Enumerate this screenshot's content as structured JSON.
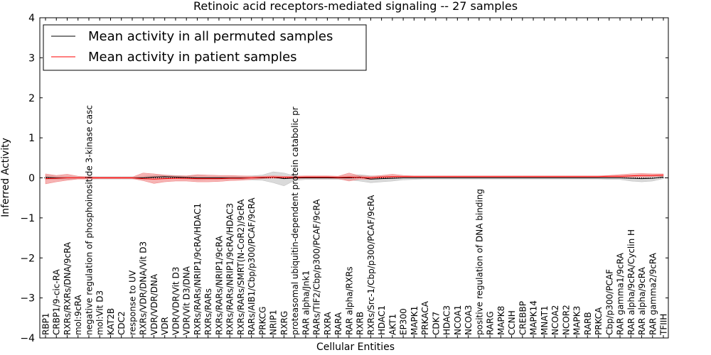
{
  "chart_data": {
    "type": "line",
    "title": "Retinoic acid receptors-mediated signaling -- 27 samples",
    "xlabel": "Cellular Entities",
    "ylabel": "Inferred Activity",
    "ylim": [
      -4,
      4
    ],
    "yticks": [
      "4",
      "3",
      "2",
      "1",
      "0",
      "−1",
      "−2",
      "−3",
      "−4"
    ],
    "legend_position": "upper-left",
    "categories": [
      "RBP1",
      "CRBP1/9-cic-RA",
      "RXRs/RXRs/DNA/9cRA",
      "mol:9cRA",
      "negative regulation of phosphoinositide 3-kinase casc",
      "mol:Vit D3",
      "KAT2B",
      "CDC2",
      "response to UV",
      "RXRs/VDR/DNA/Vit D3",
      "VDR/VDR/DNA",
      "VDR",
      "VDR/VDR/Vit D3",
      "VDR/Vit D3/DNA",
      "RXRs/RARs/NRIP1/9cRA/HDAC1",
      "RXRs/RARs",
      "RXRs/RARs/NRIP1/9cRA",
      "RXRs/RARs/NRIP1/9cRA/HDAC3",
      "RXRs/RARs/SMRT(N-CoR2)/9cRA",
      "RARs/AIB1/Cbp/p300/PCAF/9cRA",
      "PRKCG",
      "NRIP1",
      "RXRG",
      "proteasomal ubiquitin-dependent protein catabolic pr",
      "RAR alpha/Jnk1",
      "RARs/TIF2/Cbp/p300/PCAF/9cRA",
      "RXRA",
      "RARA",
      "RAR alpha/RXRs",
      "RXRB",
      "RXRs/Src-1/Cbp/p300/PCAF/9cRA",
      "HDAC1",
      "AKT1",
      "EP300",
      "MAPK1",
      "PRKACA",
      "CDK7",
      "HDAC3",
      "NCOA1",
      "NCOA3",
      "positive regulation of DNA binding",
      "RARG",
      "MAPK8",
      "CCNH",
      "CREBBP",
      "MAPK14",
      "MNAT1",
      "NCOA2",
      "NCOR2",
      "MAPK3",
      "RARB",
      "PRKCA",
      "Cbp/p300/PCAF",
      "RAR gamma1/9cRA",
      "RAR alpha/9cRA/Cyclin H",
      "RAR alpha/9cRA",
      "RAR gamma2/9cRA",
      "TFIIH"
    ],
    "series": [
      {
        "name": "Mean activity in all permuted samples",
        "color": "#000000",
        "band_color": "#bbbbbb",
        "values": [
          0.01,
          0.0,
          0.0,
          0.0,
          0.0,
          0.0,
          0.0,
          0.0,
          0.0,
          0.0,
          0.02,
          0.03,
          0.02,
          0.01,
          0.0,
          0.0,
          0.0,
          0.0,
          0.0,
          0.0,
          0.0,
          0.02,
          -0.02,
          0.0,
          0.0,
          0.0,
          0.0,
          0.0,
          0.0,
          0.02,
          -0.03,
          -0.02,
          -0.01,
          0.0,
          0.0,
          0.0,
          0.0,
          0.0,
          0.0,
          0.0,
          0.0,
          0.0,
          0.0,
          0.0,
          0.0,
          0.0,
          0.0,
          0.0,
          0.0,
          0.0,
          0.0,
          0.0,
          0.0,
          0.0,
          -0.01,
          -0.02,
          -0.01,
          0.02
        ],
        "band_upper": [
          0.06,
          0.04,
          0.04,
          0.03,
          0.03,
          0.03,
          0.03,
          0.03,
          0.03,
          0.04,
          0.06,
          0.07,
          0.06,
          0.05,
          0.05,
          0.04,
          0.04,
          0.04,
          0.04,
          0.05,
          0.07,
          0.15,
          0.12,
          0.05,
          0.04,
          0.04,
          0.04,
          0.04,
          0.05,
          0.08,
          0.05,
          0.04,
          0.04,
          0.04,
          0.03,
          0.03,
          0.03,
          0.03,
          0.03,
          0.03,
          0.03,
          0.03,
          0.03,
          0.03,
          0.03,
          0.03,
          0.03,
          0.03,
          0.03,
          0.03,
          0.03,
          0.03,
          0.03,
          0.03,
          0.04,
          0.03,
          0.04,
          0.06
        ],
        "band_lower": [
          -0.04,
          -0.04,
          -0.04,
          -0.03,
          -0.03,
          -0.03,
          -0.03,
          -0.03,
          -0.03,
          -0.04,
          -0.02,
          -0.01,
          -0.02,
          -0.03,
          -0.05,
          -0.04,
          -0.04,
          -0.04,
          -0.04,
          -0.05,
          -0.06,
          -0.12,
          -0.2,
          -0.06,
          -0.04,
          -0.04,
          -0.04,
          -0.04,
          -0.05,
          -0.08,
          -0.12,
          -0.1,
          -0.08,
          -0.05,
          -0.04,
          -0.03,
          -0.03,
          -0.03,
          -0.03,
          -0.03,
          -0.03,
          -0.03,
          -0.03,
          -0.03,
          -0.03,
          -0.03,
          -0.03,
          -0.03,
          -0.03,
          -0.03,
          -0.03,
          -0.03,
          -0.04,
          -0.04,
          -0.08,
          -0.1,
          -0.08,
          -0.02
        ]
      },
      {
        "name": "Mean activity in patient samples",
        "color": "#ff0000",
        "band_color": "#f08080",
        "values": [
          -0.02,
          -0.01,
          0.0,
          0.0,
          0.0,
          0.0,
          0.0,
          0.0,
          0.0,
          -0.02,
          -0.03,
          -0.02,
          -0.01,
          -0.01,
          -0.02,
          -0.02,
          -0.02,
          -0.01,
          -0.01,
          0.0,
          0.01,
          0.02,
          0.01,
          0.01,
          0.02,
          0.02,
          0.02,
          0.01,
          0.02,
          0.01,
          0.0,
          0.02,
          0.03,
          0.03,
          0.03,
          0.03,
          0.03,
          0.03,
          0.03,
          0.03,
          0.03,
          0.03,
          0.03,
          0.03,
          0.03,
          0.03,
          0.03,
          0.03,
          0.03,
          0.03,
          0.03,
          0.03,
          0.04,
          0.04,
          0.05,
          0.06,
          0.06,
          0.07
        ],
        "band_upper": [
          0.1,
          0.06,
          0.09,
          0.04,
          0.03,
          0.02,
          0.02,
          0.02,
          0.02,
          0.12,
          0.1,
          0.07,
          0.05,
          0.05,
          0.08,
          0.07,
          0.06,
          0.06,
          0.05,
          0.04,
          0.04,
          0.05,
          0.04,
          0.04,
          0.05,
          0.05,
          0.05,
          0.04,
          0.12,
          0.05,
          0.04,
          0.06,
          0.09,
          0.06,
          0.05,
          0.05,
          0.05,
          0.05,
          0.05,
          0.05,
          0.05,
          0.05,
          0.05,
          0.05,
          0.05,
          0.05,
          0.05,
          0.05,
          0.05,
          0.05,
          0.05,
          0.05,
          0.06,
          0.08,
          0.1,
          0.11,
          0.1,
          0.1
        ],
        "band_lower": [
          -0.15,
          -0.1,
          -0.06,
          -0.03,
          -0.03,
          -0.02,
          -0.02,
          -0.02,
          -0.02,
          -0.07,
          -0.14,
          -0.1,
          -0.08,
          -0.08,
          -0.1,
          -0.1,
          -0.09,
          -0.07,
          -0.06,
          -0.04,
          -0.02,
          -0.01,
          -0.02,
          -0.02,
          -0.01,
          -0.01,
          -0.01,
          -0.02,
          -0.08,
          -0.03,
          -0.04,
          -0.02,
          0.0,
          0.0,
          0.0,
          0.0,
          0.0,
          0.0,
          0.0,
          0.0,
          0.0,
          0.0,
          0.0,
          0.0,
          0.0,
          0.0,
          0.0,
          0.0,
          0.0,
          0.0,
          0.0,
          0.0,
          0.01,
          0.01,
          0.02,
          0.02,
          0.03,
          0.04
        ]
      }
    ]
  }
}
